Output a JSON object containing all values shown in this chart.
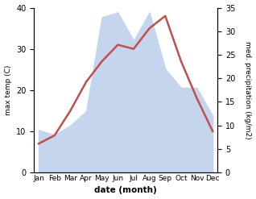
{
  "months": [
    "Jan",
    "Feb",
    "Mar",
    "Apr",
    "May",
    "Jun",
    "Jul",
    "Aug",
    "Sep",
    "Oct",
    "Nov",
    "Dec"
  ],
  "temperature": [
    7,
    9,
    15,
    22,
    27,
    31,
    30,
    35,
    38,
    27,
    18,
    10
  ],
  "precipitation": [
    9,
    8,
    10,
    13,
    33,
    34,
    28,
    34,
    22,
    18,
    18,
    12
  ],
  "temp_ylim": [
    0,
    40
  ],
  "precip_ylim": [
    0,
    35
  ],
  "temp_yticks": [
    0,
    10,
    20,
    30,
    40
  ],
  "precip_yticks": [
    0,
    5,
    10,
    15,
    20,
    25,
    30,
    35
  ],
  "temp_color": "#c0504d",
  "precip_fill_color": "#c5d5ee",
  "xlabel": "date (month)",
  "ylabel_left": "max temp (C)",
  "ylabel_right": "med. precipitation (kg/m2)",
  "background_color": "#ffffff",
  "line_width": 1.8
}
